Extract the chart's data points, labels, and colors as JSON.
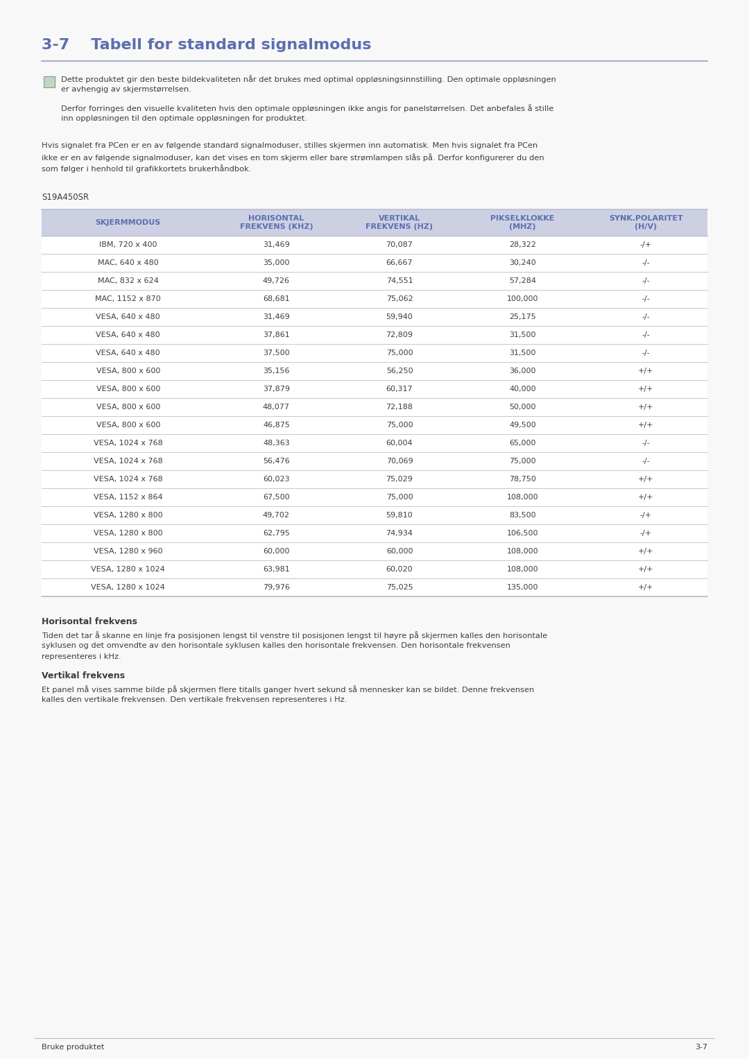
{
  "title": "3-7    Tabell for standard signalmodus",
  "title_color": "#5b6faf",
  "page_bg": "#f8f8f8",
  "note_text1_line1": "Dette produktet gir den beste bildekvaliteten når det brukes med optimal oppløsningsinnstilling. Den optimale oppløsningen",
  "note_text1_line2": "er avhengig av skjermstørrelsen.",
  "note_text2_line1": "Derfor forringes den visuelle kvaliteten hvis den optimale oppløsningen ikke angis for panelstørrelsen. Det anbefales å stille",
  "note_text2_line2": "inn oppløsningen til den optimale oppløsningen for produktet.",
  "body_line1": "Hvis signalet fra PCen er en av følgende standard signalmoduser, stilles skjermen inn automatisk. Men hvis signalet fra PCen",
  "body_line2": "ikke er en av følgende signalmoduser, kan det vises en tom skjerm eller bare strømlampen slås på. Derfor konfigurerer du den",
  "body_line3": "som følger i henhold til grafikkortets brukerhåndbok.",
  "table_label": "S19A450SR",
  "header_bg": "#cdd0e3",
  "header_text_color": "#5b6faf",
  "row_bg": "#ffffff",
  "col_headers": [
    "SKJERMMODUS",
    "HORISONTAL\nFREKVENS (KHZ)",
    "VERTIKAL\nFREKVENS (HZ)",
    "PIKSELKLOKKE\n(MHZ)",
    "SYNK.POLARITET\n(H/V)"
  ],
  "rows": [
    [
      "IBM, 720 x 400",
      "31,469",
      "70,087",
      "28,322",
      "-/+"
    ],
    [
      "MAC, 640 x 480",
      "35,000",
      "66,667",
      "30,240",
      "-/-"
    ],
    [
      "MAC, 832 x 624",
      "49,726",
      "74,551",
      "57,284",
      "-/-"
    ],
    [
      "MAC, 1152 x 870",
      "68,681",
      "75,062",
      "100,000",
      "-/-"
    ],
    [
      "VESA, 640 x 480",
      "31,469",
      "59,940",
      "25,175",
      "-/-"
    ],
    [
      "VESA, 640 x 480",
      "37,861",
      "72,809",
      "31,500",
      "-/-"
    ],
    [
      "VESA, 640 x 480",
      "37,500",
      "75,000",
      "31,500",
      "-/-"
    ],
    [
      "VESA, 800 x 600",
      "35,156",
      "56,250",
      "36,000",
      "+/+"
    ],
    [
      "VESA, 800 x 600",
      "37,879",
      "60,317",
      "40,000",
      "+/+"
    ],
    [
      "VESA, 800 x 600",
      "48,077",
      "72,188",
      "50,000",
      "+/+"
    ],
    [
      "VESA, 800 x 600",
      "46,875",
      "75,000",
      "49,500",
      "+/+"
    ],
    [
      "VESA, 1024 x 768",
      "48,363",
      "60,004",
      "65,000",
      "-/-"
    ],
    [
      "VESA, 1024 x 768",
      "56,476",
      "70,069",
      "75,000",
      "-/-"
    ],
    [
      "VESA, 1024 x 768",
      "60,023",
      "75,029",
      "78,750",
      "+/+"
    ],
    [
      "VESA, 1152 x 864",
      "67,500",
      "75,000",
      "108,000",
      "+/+"
    ],
    [
      "VESA, 1280 x 800",
      "49,702",
      "59,810",
      "83,500",
      "-/+"
    ],
    [
      "VESA, 1280 x 800",
      "62,795",
      "74,934",
      "106,500",
      "-/+"
    ],
    [
      "VESA, 1280 x 960",
      "60,000",
      "60,000",
      "108,000",
      "+/+"
    ],
    [
      "VESA, 1280 x 1024",
      "63,981",
      "60,020",
      "108,000",
      "+/+"
    ],
    [
      "VESA, 1280 x 1024",
      "79,976",
      "75,025",
      "135,000",
      "+/+"
    ]
  ],
  "footer_title1": "Horisontal frekvens",
  "footer_text1_l1": "Tiden det tar å skanne en linje fra posisjonen lengst til venstre til posisjonen lengst til høyre på skjermen kalles den horisontale",
  "footer_text1_l2": "syklusen og det omvendte av den horisontale syklusen kalles den horisontale frekvensen. Den horisontale frekvensen",
  "footer_text1_l3": "representeres i kHz.",
  "footer_title2": "Vertikal frekvens",
  "footer_text2_l1": "Et panel må vises samme bilde på skjermen flere titalls ganger hvert sekund så mennesker kan se bildet. Denne frekvensen",
  "footer_text2_l2": "kalles den vertikale frekvensen. Den vertikale frekvensen representeres i Hz.",
  "footer_left": "Bruke produktet",
  "footer_right": "3-7",
  "text_color": "#3c3c3c",
  "border_color": "#b8bdd0",
  "title_line_color": "#9aa0c0"
}
